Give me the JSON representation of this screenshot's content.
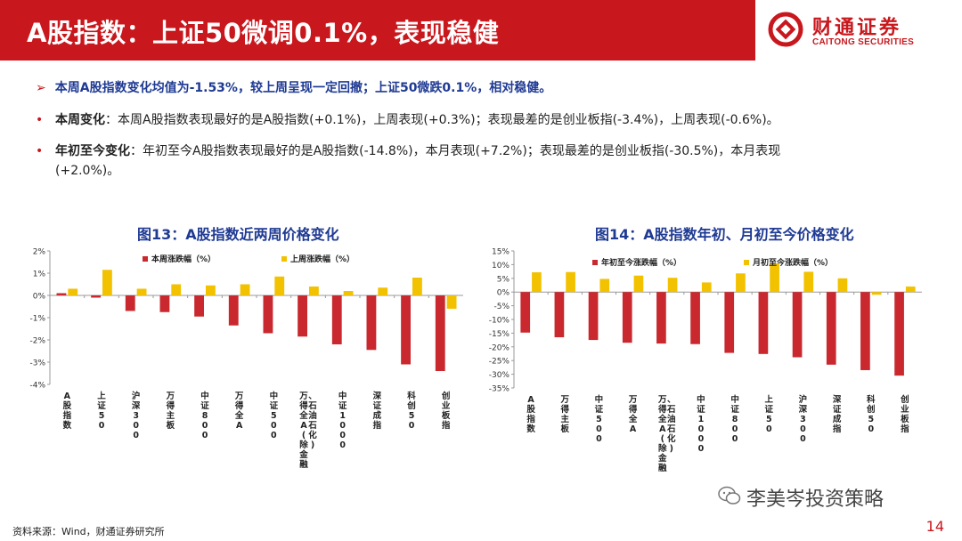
{
  "header": {
    "title": "A股指数：上证50微调0.1%，表现稳健",
    "logo_cn": "财通证券",
    "logo_en": "CAITONG SECURITIES"
  },
  "summary": {
    "lead": "本周A股指数变化均值为-1.53%，较上周呈现一定回撤；上证50微跌0.1%，相对稳健。",
    "b1_label": "本周变化",
    "b1_text": "：本周A股指数表现最好的是A股指数(+0.1%)，上周表现(+0.3%)；表现最差的是创业板指(-3.4%)，上周表现(-0.6%)。",
    "b2_label": "年初至今变化",
    "b2_text": "：年初至今A股指数表现最好的是A股指数(-14.8%)，本月表现(+7.2%)；表现最差的是创业板指(-30.5%)，本月表现",
    "b2_cont": "(+2.0%)。"
  },
  "charts": {
    "left_title": "图13：A股指数近两周价格变化",
    "right_title": "图14：A股指数年初、月初至今价格变化"
  },
  "chart_data": [
    {
      "type": "bar",
      "title": "图13：A股指数近两周价格变化",
      "categories": [
        "A股指数",
        "上证50",
        "沪深300",
        "万得主板",
        "中证800",
        "万得全A",
        "中证500",
        "万得全A(除金融、石油石化)",
        "中证1000",
        "深证成指",
        "科创50",
        "创业板指"
      ],
      "series": [
        {
          "name": "本周涨跌幅（%）",
          "color": "#c8282e",
          "values": [
            0.1,
            -0.1,
            -0.7,
            -0.75,
            -0.95,
            -1.35,
            -1.7,
            -1.85,
            -2.2,
            -2.45,
            -3.1,
            -3.4
          ]
        },
        {
          "name": "上周涨跌幅（%）",
          "color": "#f2c200",
          "values": [
            0.3,
            1.15,
            0.3,
            0.5,
            0.45,
            0.5,
            0.85,
            0.4,
            0.2,
            0.35,
            0.8,
            -0.6
          ]
        }
      ],
      "ylim": [
        -4,
        2
      ],
      "yticks": [
        "2%",
        "1%",
        "0%",
        "-1%",
        "-2%",
        "-3%",
        "-4%"
      ],
      "legend": "top",
      "grid": false
    },
    {
      "type": "bar",
      "title": "图14：A股指数年初、月初至今价格变化",
      "categories": [
        "A股指数",
        "万得主板",
        "中证500",
        "万得全A",
        "万得全A(除金融、石油石化)",
        "中证1000",
        "中证800",
        "上证50",
        "沪深300",
        "深证成指",
        "科创50",
        "创业板指"
      ],
      "series": [
        {
          "name": "年初至今涨跌幅（%）",
          "color": "#c8282e",
          "values": [
            -14.8,
            -16.5,
            -17.5,
            -18.5,
            -18.8,
            -19.0,
            -22.2,
            -22.6,
            -23.8,
            -26.5,
            -28.5,
            -30.5
          ]
        },
        {
          "name": "月初至今涨跌幅（%）",
          "color": "#f2c200",
          "values": [
            7.2,
            7.3,
            4.8,
            6.0,
            5.2,
            3.5,
            6.8,
            10.5,
            7.4,
            5.0,
            -1.0,
            2.0
          ]
        }
      ],
      "ylim": [
        -35,
        15
      ],
      "yticks": [
        "15%",
        "10%",
        "5%",
        "0%",
        "-5%",
        "-10%",
        "-15%",
        "-20%",
        "-25%",
        "-30%",
        "-35%"
      ],
      "legend": "top",
      "grid": false
    }
  ],
  "footer": {
    "source": "资料来源：Wind，财通证券研究所",
    "wechat": "李美岑投资策略",
    "page": "14"
  }
}
